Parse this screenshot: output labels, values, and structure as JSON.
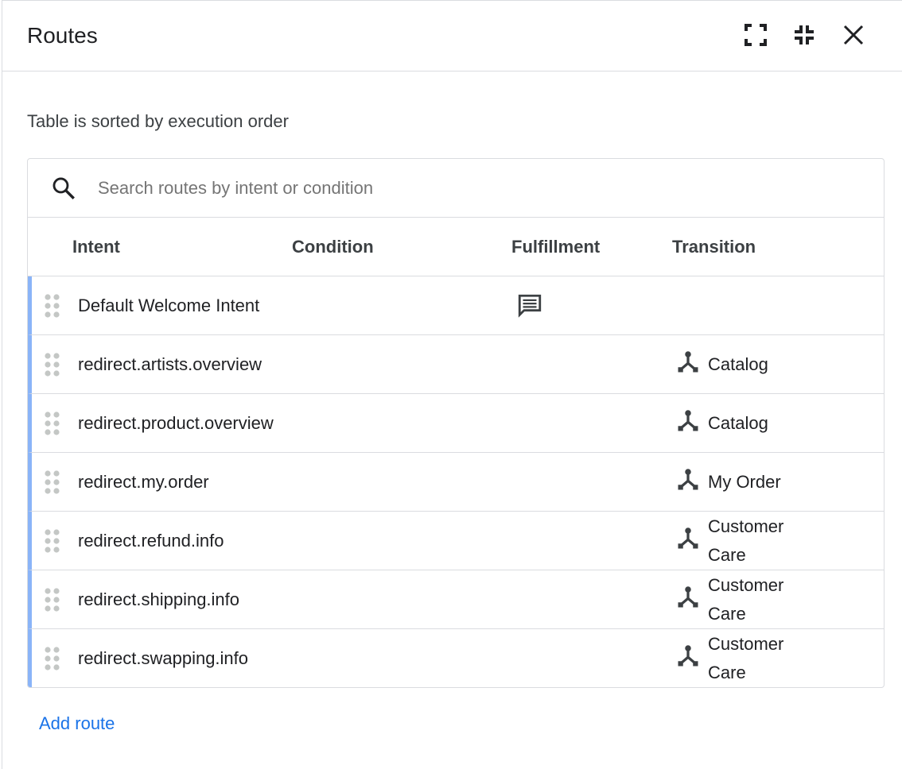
{
  "header": {
    "title": "Routes",
    "icons": [
      "fullscreen-icon",
      "collapse-icon",
      "close-icon"
    ]
  },
  "note": "Table is sorted by execution order",
  "search": {
    "placeholder": "Search routes by intent or condition",
    "value": ""
  },
  "columns": [
    "Intent",
    "Condition",
    "Fulfillment",
    "Transition"
  ],
  "rows": [
    {
      "intent": "Default Welcome Intent",
      "condition": "",
      "fulfillment": "message",
      "transition": ""
    },
    {
      "intent": "redirect.artists.overview",
      "condition": "",
      "fulfillment": "",
      "transition": "Catalog"
    },
    {
      "intent": "redirect.product.overview",
      "condition": "",
      "fulfillment": "",
      "transition": "Catalog"
    },
    {
      "intent": "redirect.my.order",
      "condition": "",
      "fulfillment": "",
      "transition": "My Order"
    },
    {
      "intent": "redirect.refund.info",
      "condition": "",
      "fulfillment": "",
      "transition": "Customer Care"
    },
    {
      "intent": "redirect.shipping.info",
      "condition": "",
      "fulfillment": "",
      "transition": "Customer Care"
    },
    {
      "intent": "redirect.swapping.info",
      "condition": "",
      "fulfillment": "",
      "transition": "Customer Care"
    }
  ],
  "add_route": "Add route",
  "colors": {
    "accent": "#1a73e8",
    "row_marker": "#8ab4f8"
  }
}
